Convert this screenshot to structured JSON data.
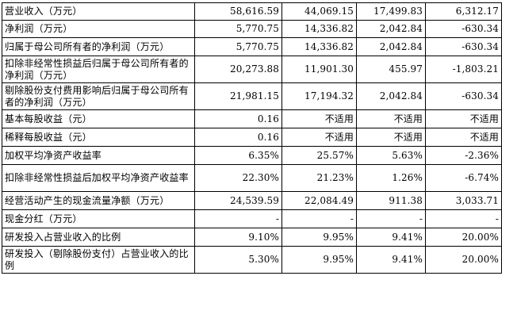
{
  "table": {
    "rows": [
      {
        "label": "营业收入（万元）",
        "values": [
          "58,616.59",
          "44,069.15",
          "17,499.83",
          "6,312.17"
        ]
      },
      {
        "label": "净利润（万元）",
        "values": [
          "5,770.75",
          "14,336.82",
          "2,042.84",
          "-630.34"
        ]
      },
      {
        "label": "归属于母公司所有者的净利润（万元）",
        "values": [
          "5,770.75",
          "14,336.82",
          "2,042.84",
          "-630.34"
        ]
      },
      {
        "label": "扣除非经常性损益后归属于母公司所有者的净利润（万元）",
        "values": [
          "20,273.88",
          "11,901.30",
          "455.97",
          "-1,803.21"
        ]
      },
      {
        "label": "剔除股份支付费用影响后归属于母公司所有者的净利润（万元）",
        "values": [
          "21,981.15",
          "17,194.32",
          "2,042.84",
          "-630.34"
        ]
      },
      {
        "label": "基本每股收益（元）",
        "values": [
          "0.16",
          "不适用",
          "不适用",
          "不适用"
        ]
      },
      {
        "label": "稀释每股收益（元）",
        "values": [
          "0.16",
          "不适用",
          "不适用",
          "不适用"
        ]
      },
      {
        "label": "加权平均净资产收益率",
        "values": [
          "6.35%",
          "25.57%",
          "5.63%",
          "-2.36%"
        ]
      },
      {
        "label": "扣除非经常性损益后加权平均净资产收益率",
        "values": [
          "22.30%",
          "21.23%",
          "1.26%",
          "-6.74%"
        ]
      },
      {
        "label": "经营活动产生的现金流量净额（万元）",
        "values": [
          "24,539.59",
          "22,084.49",
          "911.38",
          "3,033.71"
        ]
      },
      {
        "label": "现金分红（万元）",
        "values": [
          "-",
          "-",
          "-",
          "-"
        ]
      },
      {
        "label": "研发投入占营业收入的比例",
        "values": [
          "9.10%",
          "9.95%",
          "9.41%",
          "20.00%"
        ]
      },
      {
        "label": "研发投入（剔除股份支付）占营业收入的比例",
        "values": [
          "5.30%",
          "9.95%",
          "9.41%",
          "20.00%"
        ]
      }
    ]
  }
}
